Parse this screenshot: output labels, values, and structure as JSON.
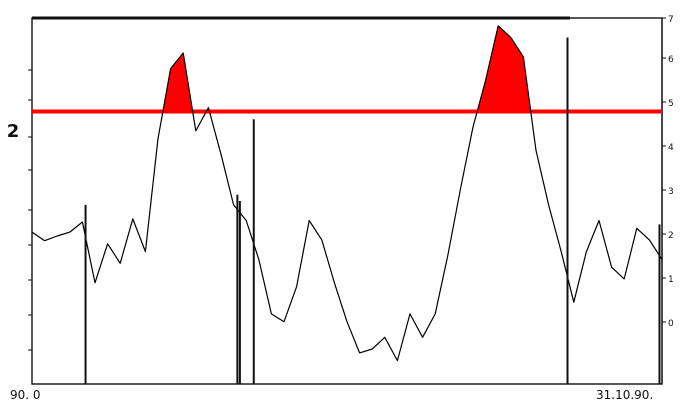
{
  "chart_data": {
    "type": "line",
    "title": "",
    "xlabel": "",
    "ylabel": "",
    "x_start_label": "90. 0",
    "x_end_label": "31.10.90.",
    "threshold_label": "2",
    "right_axis_ticks": [
      "7",
      "6",
      "5",
      "4",
      "3",
      "2",
      "1",
      "0"
    ],
    "threshold": 2.0,
    "ylim": [
      -1.5,
      3.2
    ],
    "line_color": "#000000",
    "threshold_color": "#ff0000",
    "fill_color": "#ff0000",
    "series": [
      {
        "x": [
          0,
          2,
          4,
          6,
          8,
          10,
          12,
          14,
          16,
          18,
          20,
          22,
          24,
          26,
          28,
          30,
          32,
          34,
          36,
          38,
          40,
          42,
          44,
          46,
          48,
          50,
          52,
          54,
          56,
          58,
          60,
          62,
          64,
          66,
          68,
          70,
          72,
          74,
          76,
          78,
          80,
          82,
          84,
          86,
          88,
          90,
          92,
          94,
          96,
          98,
          100
        ],
        "values": [
          0.45,
          0.34,
          0.4,
          0.45,
          0.58,
          -0.2,
          0.3,
          0.05,
          0.62,
          0.2,
          1.65,
          2.55,
          2.75,
          1.75,
          2.05,
          1.45,
          0.8,
          0.6,
          0.1,
          -0.6,
          -0.7,
          -0.25,
          0.6,
          0.35,
          -0.2,
          -0.7,
          -1.1,
          -1.05,
          -0.9,
          -1.2,
          -0.6,
          -0.9,
          -0.6,
          0.15,
          1.0,
          1.8,
          2.4,
          3.1,
          2.95,
          2.7,
          1.5,
          0.8,
          0.2,
          -0.45,
          0.2,
          0.6,
          0.0,
          -0.15,
          0.5,
          0.35,
          0.1
        ]
      }
    ],
    "markers": [
      {
        "x": 8.5,
        "from": -1.5,
        "to": 0.8
      },
      {
        "x": 32.6,
        "from": -1.5,
        "to": 0.93
      },
      {
        "x": 33.0,
        "from": -1.5,
        "to": 0.85
      },
      {
        "x": 35.2,
        "from": -1.5,
        "to": 1.9
      },
      {
        "x": 85.0,
        "from": -1.5,
        "to": 2.95
      },
      {
        "x": 99.6,
        "from": -1.5,
        "to": 0.55
      }
    ]
  }
}
